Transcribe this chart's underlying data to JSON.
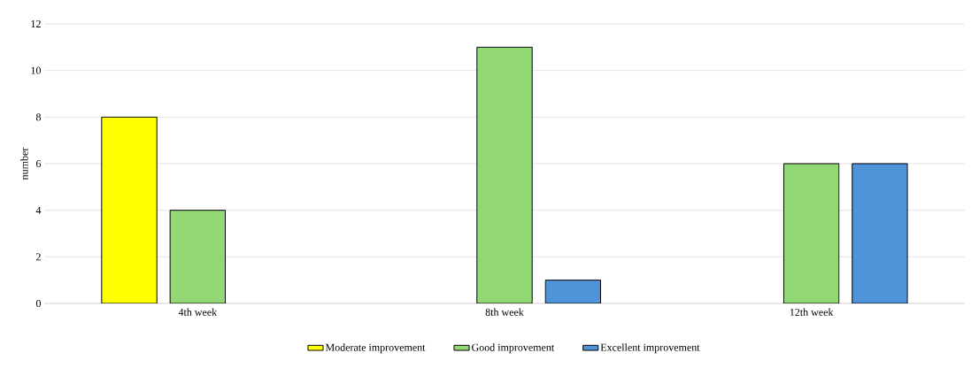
{
  "chart_data": {
    "type": "bar",
    "ylabel": "number",
    "categories": [
      "4th week",
      "8th week",
      "12th week"
    ],
    "series": [
      {
        "name": "Moderate improvement",
        "color": "#ffff00",
        "values": [
          8,
          null,
          null
        ]
      },
      {
        "name": "Good improvement",
        "color": "#92d975",
        "values": [
          4,
          11,
          6
        ]
      },
      {
        "name": "Excellent improvement",
        "color": "#4f93d8",
        "values": [
          null,
          1,
          6
        ]
      }
    ],
    "ylim": [
      0,
      12
    ],
    "yticks": [
      0,
      2,
      4,
      6,
      8,
      10,
      12
    ],
    "grid": "y",
    "legend": "bottom"
  }
}
